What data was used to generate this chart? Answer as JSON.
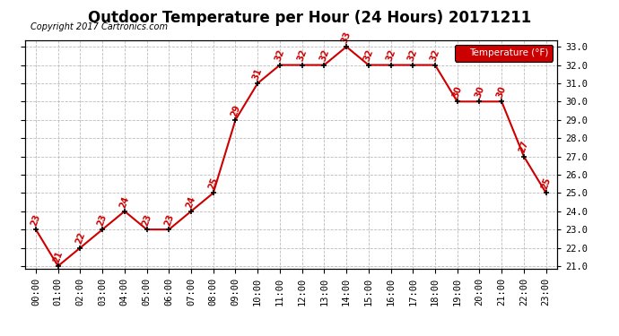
{
  "title": "Outdoor Temperature per Hour (24 Hours) 20171211",
  "copyright": "Copyright 2017 Cartronics.com",
  "legend_label": "Temperature (°F)",
  "hours": [
    "00:00",
    "01:00",
    "02:00",
    "03:00",
    "04:00",
    "05:00",
    "06:00",
    "07:00",
    "08:00",
    "09:00",
    "10:00",
    "11:00",
    "12:00",
    "13:00",
    "14:00",
    "15:00",
    "16:00",
    "17:00",
    "18:00",
    "19:00",
    "20:00",
    "21:00",
    "22:00",
    "23:00"
  ],
  "temperatures": [
    23,
    21,
    22,
    23,
    24,
    23,
    23,
    24,
    25,
    29,
    31,
    32,
    32,
    32,
    33,
    32,
    32,
    32,
    32,
    30,
    30,
    30,
    27,
    25
  ],
  "ylim_min": 21.0,
  "ylim_max": 33.0,
  "yticks": [
    21.0,
    22.0,
    23.0,
    24.0,
    25.0,
    26.0,
    27.0,
    28.0,
    29.0,
    30.0,
    31.0,
    32.0,
    33.0
  ],
  "line_color": "#cc0000",
  "marker_color": "#000000",
  "bg_color": "#ffffff",
  "grid_color": "#bbbbbb",
  "title_fontsize": 12,
  "axis_fontsize": 7.5,
  "label_fontsize": 7
}
